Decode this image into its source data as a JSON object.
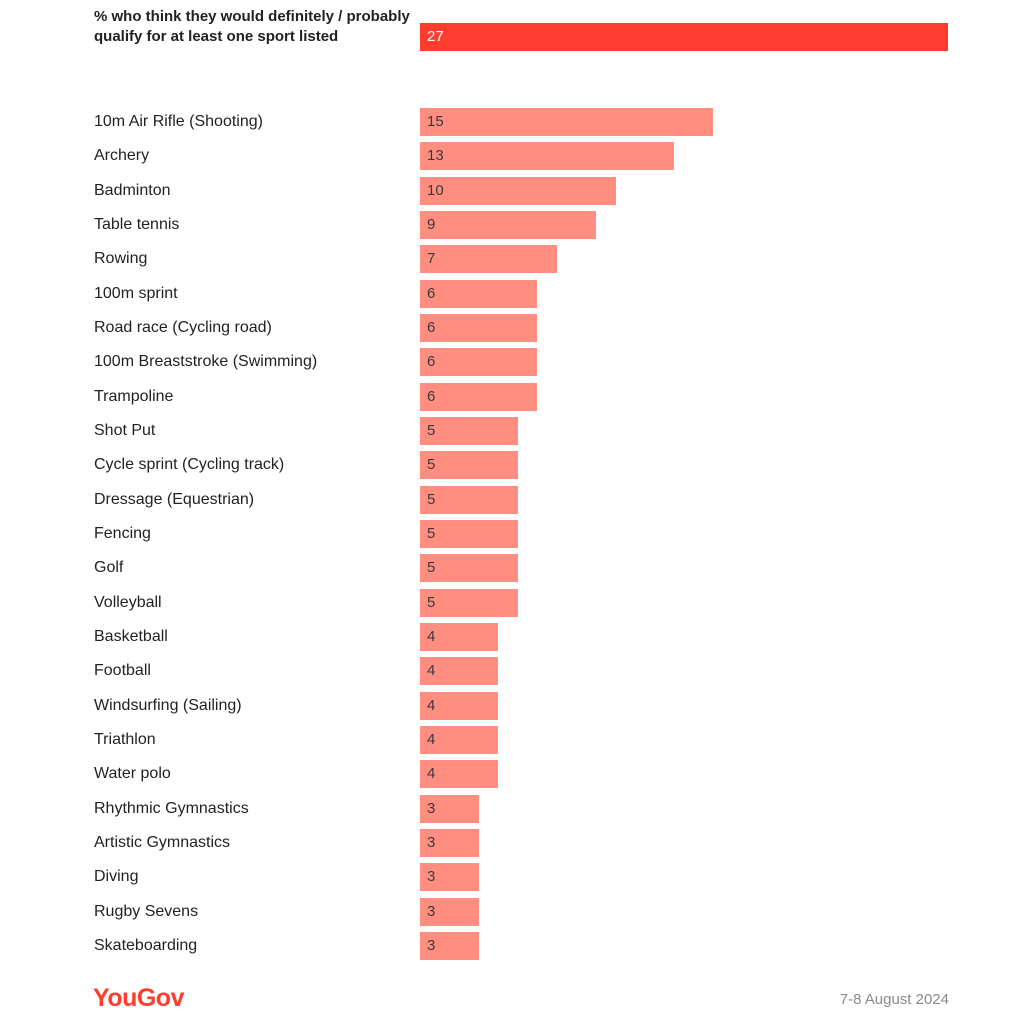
{
  "chart_data": [
    {
      "type": "bar",
      "orientation": "horizontal",
      "color": "#ff3d2e",
      "value_color": "#ffffff",
      "label_bold": true,
      "categories": [
        "% who think they would definitely / probably qualify for at least one sport listed"
      ],
      "values": [
        27
      ]
    },
    {
      "type": "bar",
      "orientation": "horizontal",
      "color": "#ff8e80",
      "value_color": "#3a3a3a",
      "label_bold": false,
      "categories": [
        "10m Air Rifle (Shooting)",
        "Archery",
        "Badminton",
        "Table tennis",
        "Rowing",
        "100m sprint",
        "Road race (Cycling road)",
        "100m Breaststroke (Swimming)",
        "Trampoline",
        "Shot Put",
        "Cycle sprint (Cycling track)",
        "Dressage (Equestrian)",
        "Fencing",
        "Golf",
        "Volleyball",
        "Basketball",
        "Football",
        "Windsurfing (Sailing)",
        "Triathlon",
        "Water polo",
        "Rhythmic Gymnastics",
        "Artistic Gymnastics",
        "Diving",
        "Rugby Sevens",
        "Skateboarding"
      ],
      "values": [
        15,
        13,
        10,
        9,
        7,
        6,
        6,
        6,
        6,
        5,
        5,
        5,
        5,
        5,
        5,
        4,
        4,
        4,
        4,
        4,
        3,
        3,
        3,
        3,
        3
      ]
    }
  ],
  "footer": {
    "brand": "YouGov",
    "date": "7-8 August 2024"
  }
}
